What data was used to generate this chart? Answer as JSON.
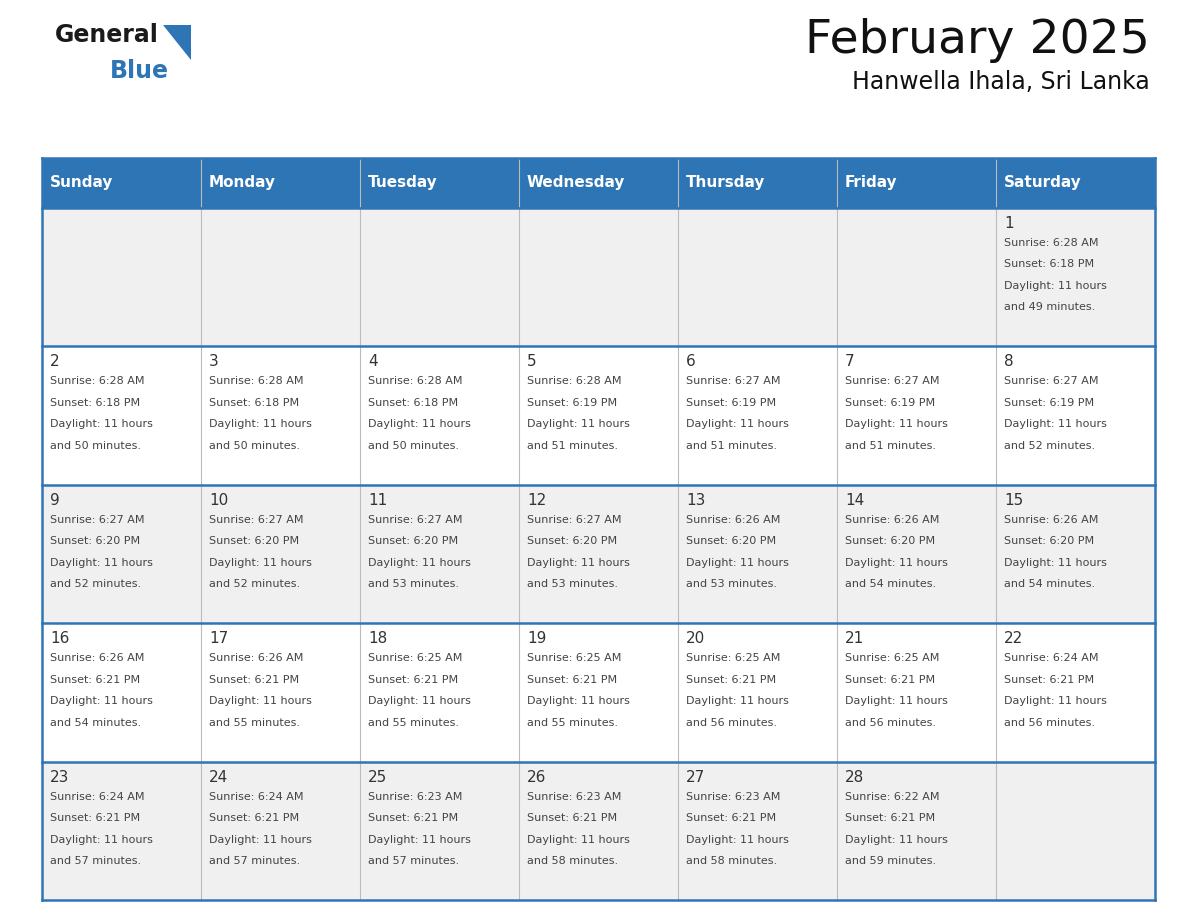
{
  "title": "February 2025",
  "subtitle": "Hanwella Ihala, Sri Lanka",
  "days_of_week": [
    "Sunday",
    "Monday",
    "Tuesday",
    "Wednesday",
    "Thursday",
    "Friday",
    "Saturday"
  ],
  "header_bg": "#2e75b6",
  "header_text": "#ffffff",
  "cell_bg_light": "#f0f0f0",
  "cell_bg_white": "#ffffff",
  "separator_color": "#2e75b6",
  "text_color": "#333333",
  "calendar_data": [
    [
      null,
      null,
      null,
      null,
      null,
      null,
      {
        "day": 1,
        "sunrise": "6:28 AM",
        "sunset": "6:18 PM",
        "daylight_line1": "Daylight: 11 hours",
        "daylight_line2": "and 49 minutes."
      }
    ],
    [
      {
        "day": 2,
        "sunrise": "6:28 AM",
        "sunset": "6:18 PM",
        "daylight_line1": "Daylight: 11 hours",
        "daylight_line2": "and 50 minutes."
      },
      {
        "day": 3,
        "sunrise": "6:28 AM",
        "sunset": "6:18 PM",
        "daylight_line1": "Daylight: 11 hours",
        "daylight_line2": "and 50 minutes."
      },
      {
        "day": 4,
        "sunrise": "6:28 AM",
        "sunset": "6:18 PM",
        "daylight_line1": "Daylight: 11 hours",
        "daylight_line2": "and 50 minutes."
      },
      {
        "day": 5,
        "sunrise": "6:28 AM",
        "sunset": "6:19 PM",
        "daylight_line1": "Daylight: 11 hours",
        "daylight_line2": "and 51 minutes."
      },
      {
        "day": 6,
        "sunrise": "6:27 AM",
        "sunset": "6:19 PM",
        "daylight_line1": "Daylight: 11 hours",
        "daylight_line2": "and 51 minutes."
      },
      {
        "day": 7,
        "sunrise": "6:27 AM",
        "sunset": "6:19 PM",
        "daylight_line1": "Daylight: 11 hours",
        "daylight_line2": "and 51 minutes."
      },
      {
        "day": 8,
        "sunrise": "6:27 AM",
        "sunset": "6:19 PM",
        "daylight_line1": "Daylight: 11 hours",
        "daylight_line2": "and 52 minutes."
      }
    ],
    [
      {
        "day": 9,
        "sunrise": "6:27 AM",
        "sunset": "6:20 PM",
        "daylight_line1": "Daylight: 11 hours",
        "daylight_line2": "and 52 minutes."
      },
      {
        "day": 10,
        "sunrise": "6:27 AM",
        "sunset": "6:20 PM",
        "daylight_line1": "Daylight: 11 hours",
        "daylight_line2": "and 52 minutes."
      },
      {
        "day": 11,
        "sunrise": "6:27 AM",
        "sunset": "6:20 PM",
        "daylight_line1": "Daylight: 11 hours",
        "daylight_line2": "and 53 minutes."
      },
      {
        "day": 12,
        "sunrise": "6:27 AM",
        "sunset": "6:20 PM",
        "daylight_line1": "Daylight: 11 hours",
        "daylight_line2": "and 53 minutes."
      },
      {
        "day": 13,
        "sunrise": "6:26 AM",
        "sunset": "6:20 PM",
        "daylight_line1": "Daylight: 11 hours",
        "daylight_line2": "and 53 minutes."
      },
      {
        "day": 14,
        "sunrise": "6:26 AM",
        "sunset": "6:20 PM",
        "daylight_line1": "Daylight: 11 hours",
        "daylight_line2": "and 54 minutes."
      },
      {
        "day": 15,
        "sunrise": "6:26 AM",
        "sunset": "6:20 PM",
        "daylight_line1": "Daylight: 11 hours",
        "daylight_line2": "and 54 minutes."
      }
    ],
    [
      {
        "day": 16,
        "sunrise": "6:26 AM",
        "sunset": "6:21 PM",
        "daylight_line1": "Daylight: 11 hours",
        "daylight_line2": "and 54 minutes."
      },
      {
        "day": 17,
        "sunrise": "6:26 AM",
        "sunset": "6:21 PM",
        "daylight_line1": "Daylight: 11 hours",
        "daylight_line2": "and 55 minutes."
      },
      {
        "day": 18,
        "sunrise": "6:25 AM",
        "sunset": "6:21 PM",
        "daylight_line1": "Daylight: 11 hours",
        "daylight_line2": "and 55 minutes."
      },
      {
        "day": 19,
        "sunrise": "6:25 AM",
        "sunset": "6:21 PM",
        "daylight_line1": "Daylight: 11 hours",
        "daylight_line2": "and 55 minutes."
      },
      {
        "day": 20,
        "sunrise": "6:25 AM",
        "sunset": "6:21 PM",
        "daylight_line1": "Daylight: 11 hours",
        "daylight_line2": "and 56 minutes."
      },
      {
        "day": 21,
        "sunrise": "6:25 AM",
        "sunset": "6:21 PM",
        "daylight_line1": "Daylight: 11 hours",
        "daylight_line2": "and 56 minutes."
      },
      {
        "day": 22,
        "sunrise": "6:24 AM",
        "sunset": "6:21 PM",
        "daylight_line1": "Daylight: 11 hours",
        "daylight_line2": "and 56 minutes."
      }
    ],
    [
      {
        "day": 23,
        "sunrise": "6:24 AM",
        "sunset": "6:21 PM",
        "daylight_line1": "Daylight: 11 hours",
        "daylight_line2": "and 57 minutes."
      },
      {
        "day": 24,
        "sunrise": "6:24 AM",
        "sunset": "6:21 PM",
        "daylight_line1": "Daylight: 11 hours",
        "daylight_line2": "and 57 minutes."
      },
      {
        "day": 25,
        "sunrise": "6:23 AM",
        "sunset": "6:21 PM",
        "daylight_line1": "Daylight: 11 hours",
        "daylight_line2": "and 57 minutes."
      },
      {
        "day": 26,
        "sunrise": "6:23 AM",
        "sunset": "6:21 PM",
        "daylight_line1": "Daylight: 11 hours",
        "daylight_line2": "and 58 minutes."
      },
      {
        "day": 27,
        "sunrise": "6:23 AM",
        "sunset": "6:21 PM",
        "daylight_line1": "Daylight: 11 hours",
        "daylight_line2": "and 58 minutes."
      },
      {
        "day": 28,
        "sunrise": "6:22 AM",
        "sunset": "6:21 PM",
        "daylight_line1": "Daylight: 11 hours",
        "daylight_line2": "and 59 minutes."
      },
      null
    ]
  ],
  "logo_general_color": "#1a1a1a",
  "logo_blue_color": "#2e75b6",
  "logo_triangle_color": "#2e75b6",
  "title_fontsize": 34,
  "subtitle_fontsize": 17,
  "header_fontsize": 11,
  "day_num_fontsize": 11,
  "cell_text_fontsize": 8
}
